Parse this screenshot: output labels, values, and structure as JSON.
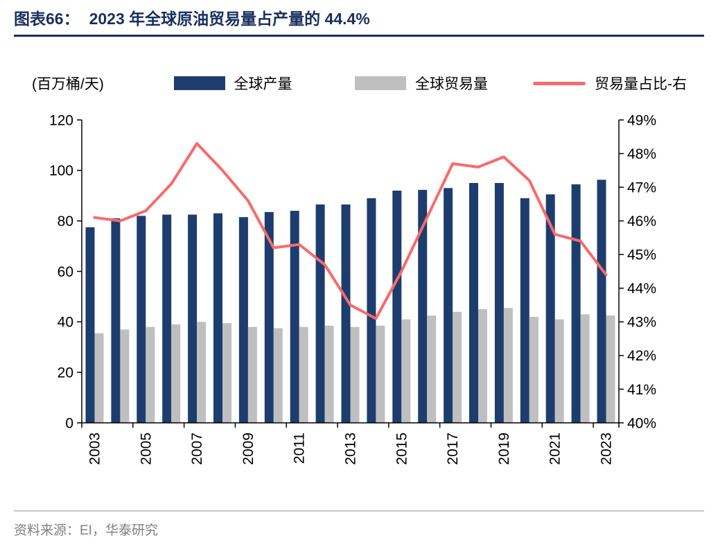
{
  "title": {
    "label": "图表66：",
    "text": "2023 年全球原油贸易量占产量的 44.4%"
  },
  "unit_label": "(百万桶/天)",
  "legend": [
    {
      "label": "全球产量",
      "type": "bar",
      "color": "#1d3d6e"
    },
    {
      "label": "全球贸易量",
      "type": "bar",
      "color": "#bfbfbf"
    },
    {
      "label": "贸易量占比-右",
      "type": "line",
      "color": "#f96a6a"
    }
  ],
  "source": "资料来源：EI，华泰研究",
  "colors": {
    "title_navy": "#1a2f5e",
    "production_bar": "#1d3d6e",
    "trade_bar": "#bfbfbf",
    "ratio_line": "#f96a6a",
    "axis_text": "#000000",
    "source_gray": "#808080"
  },
  "chart_data": {
    "type": "bar",
    "subtype": "bar+line dual axis",
    "categories": [
      "2003",
      "2004",
      "2005",
      "2006",
      "2007",
      "2008",
      "2009",
      "2010",
      "2011",
      "2012",
      "2013",
      "2014",
      "2015",
      "2016",
      "2017",
      "2018",
      "2019",
      "2020",
      "2021",
      "2022",
      "2023"
    ],
    "series": [
      {
        "name": "全球产量",
        "type": "bar",
        "axis": "left",
        "color": "#1d3d6e",
        "values": [
          77.5,
          81,
          82,
          82.5,
          82.5,
          83,
          81.5,
          83.5,
          84,
          86.5,
          86.5,
          89,
          92,
          92.3,
          93,
          95,
          95,
          89,
          90.5,
          94.5,
          96.3
        ]
      },
      {
        "name": "全球贸易量",
        "type": "bar",
        "axis": "left",
        "color": "#bfbfbf",
        "values": [
          35.5,
          37,
          38,
          39,
          40,
          39.5,
          38,
          37.5,
          38,
          38.5,
          38,
          38.5,
          41,
          42.5,
          44,
          45,
          45.5,
          42,
          41,
          43,
          42.5
        ]
      },
      {
        "name": "贸易量占比-右",
        "type": "line",
        "axis": "right",
        "color": "#f96a6a",
        "values": [
          46.1,
          46.0,
          46.3,
          47.1,
          48.3,
          47.5,
          46.6,
          45.2,
          45.3,
          44.7,
          43.5,
          43.1,
          44.5,
          46.1,
          47.7,
          47.6,
          47.9,
          47.2,
          45.6,
          45.4,
          44.4
        ]
      }
    ],
    "left_axis": {
      "label": "(百万桶/天)",
      "min": 0,
      "max": 120,
      "step": 20,
      "ticks": [
        0,
        20,
        40,
        60,
        80,
        100,
        120
      ]
    },
    "right_axis": {
      "min": 40,
      "max": 49,
      "step": 1,
      "ticks": [
        "40%",
        "41%",
        "42%",
        "43%",
        "44%",
        "45%",
        "46%",
        "47%",
        "48%",
        "49%"
      ]
    },
    "x_tick_labels": [
      "2003",
      "2005",
      "2007",
      "2009",
      "2011",
      "2013",
      "2015",
      "2017",
      "2019",
      "2021",
      "2023"
    ],
    "grid": "off",
    "legend_position": "top"
  }
}
